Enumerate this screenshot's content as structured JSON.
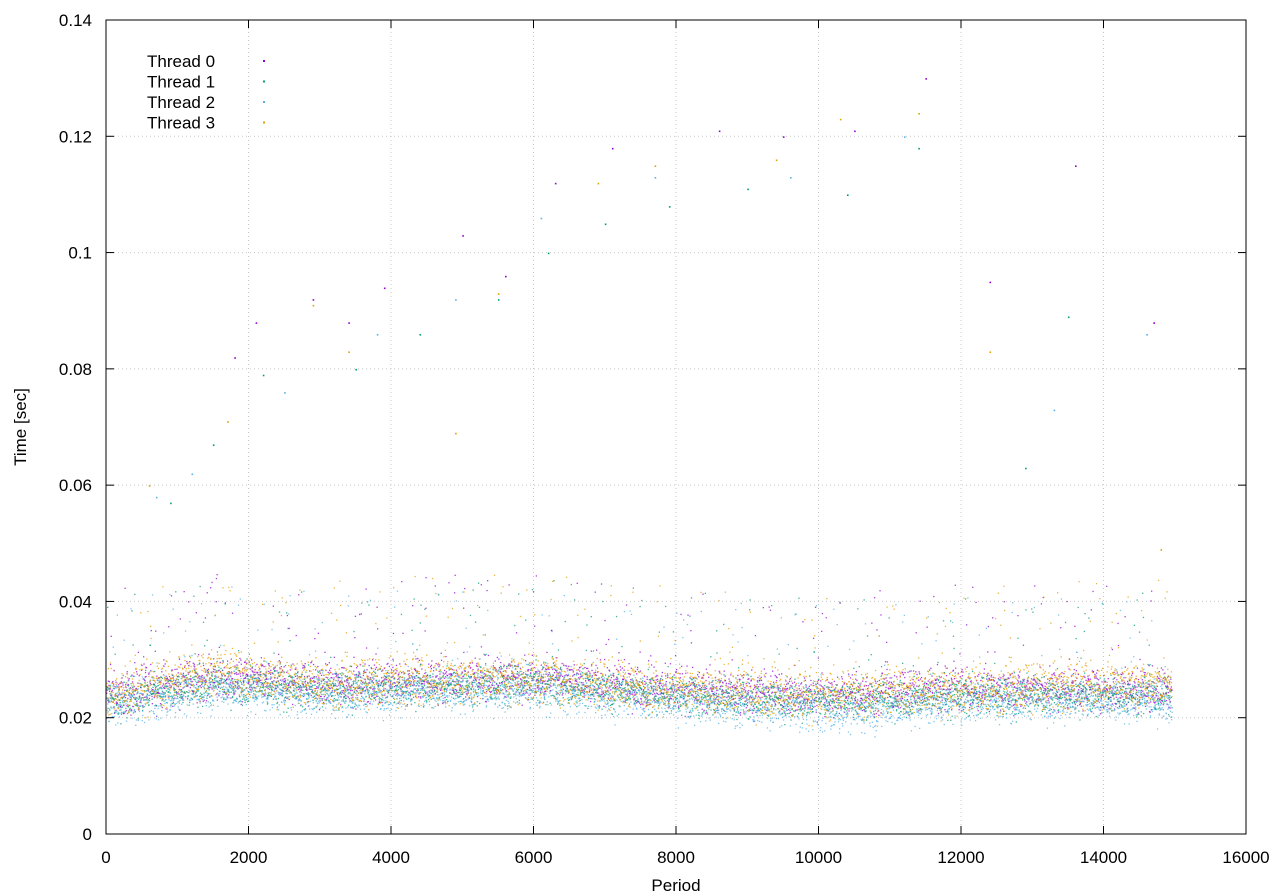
{
  "chart_data": {
    "type": "scatter",
    "title": "",
    "xlabel": "Period",
    "ylabel": "Time [sec]",
    "xlim": [
      0,
      16000
    ],
    "ylim": [
      0,
      0.14
    ],
    "x_ticks": [
      0,
      2000,
      4000,
      6000,
      8000,
      10000,
      12000,
      14000,
      16000
    ],
    "y_ticks": [
      0,
      0.02,
      0.04,
      0.06,
      0.08,
      0.1,
      0.12,
      0.14
    ],
    "x_tick_labels": [
      "0",
      "2000",
      "4000",
      "6000",
      "8000",
      "10000",
      "12000",
      "14000",
      "16000"
    ],
    "y_tick_labels": [
      "0",
      "0.02",
      "0.04",
      "0.06",
      "0.08",
      "0.1",
      "0.12",
      "0.14"
    ],
    "grid": true,
    "legend_position": "top-left",
    "series": [
      {
        "name": "Thread 0",
        "color": "#9400d3",
        "x_range": [
          0,
          14950
        ],
        "typical_range": [
          0.019,
          0.032
        ],
        "baseline_trend": [
          [
            0,
            0.024
          ],
          [
            1500,
            0.027
          ],
          [
            3000,
            0.026
          ],
          [
            6000,
            0.027
          ],
          [
            8000,
            0.025
          ],
          [
            10000,
            0.024
          ],
          [
            12000,
            0.025
          ],
          [
            14950,
            0.025
          ]
        ],
        "outliers": [
          [
            1800,
            0.082
          ],
          [
            2100,
            0.088
          ],
          [
            2900,
            0.092
          ],
          [
            3400,
            0.088
          ],
          [
            3900,
            0.094
          ],
          [
            5000,
            0.103
          ],
          [
            5600,
            0.096
          ],
          [
            6300,
            0.112
          ],
          [
            7100,
            0.118
          ],
          [
            8600,
            0.121
          ],
          [
            9500,
            0.12
          ],
          [
            10500,
            0.121
          ],
          [
            11500,
            0.13
          ],
          [
            12400,
            0.095
          ],
          [
            13600,
            0.115
          ],
          [
            14700,
            0.088
          ]
        ]
      },
      {
        "name": "Thread 1",
        "color": "#009e73",
        "x_range": [
          0,
          14950
        ],
        "typical_range": [
          0.018,
          0.03
        ],
        "baseline_trend": [
          [
            0,
            0.023
          ],
          [
            1500,
            0.026
          ],
          [
            3000,
            0.025
          ],
          [
            6000,
            0.026
          ],
          [
            8000,
            0.024
          ],
          [
            10000,
            0.023
          ],
          [
            12000,
            0.024
          ],
          [
            14950,
            0.024
          ]
        ],
        "outliers": [
          [
            900,
            0.057
          ],
          [
            1500,
            0.067
          ],
          [
            2200,
            0.079
          ],
          [
            3500,
            0.08
          ],
          [
            4400,
            0.086
          ],
          [
            5500,
            0.092
          ],
          [
            6200,
            0.1
          ],
          [
            7000,
            0.105
          ],
          [
            7900,
            0.108
          ],
          [
            9000,
            0.111
          ],
          [
            10400,
            0.11
          ],
          [
            11400,
            0.118
          ],
          [
            12900,
            0.063
          ],
          [
            13500,
            0.089
          ]
        ]
      },
      {
        "name": "Thread 2",
        "color": "#56b4e9",
        "x_range": [
          0,
          14950
        ],
        "typical_range": [
          0.016,
          0.029
        ],
        "baseline_trend": [
          [
            0,
            0.022
          ],
          [
            1500,
            0.025
          ],
          [
            3000,
            0.024
          ],
          [
            6000,
            0.025
          ],
          [
            8000,
            0.023
          ],
          [
            10500,
            0.021
          ],
          [
            12000,
            0.023
          ],
          [
            14950,
            0.023
          ]
        ],
        "outliers": [
          [
            700,
            0.058
          ],
          [
            1200,
            0.062
          ],
          [
            2500,
            0.076
          ],
          [
            3800,
            0.086
          ],
          [
            4900,
            0.092
          ],
          [
            6100,
            0.106
          ],
          [
            7700,
            0.113
          ],
          [
            9600,
            0.113
          ],
          [
            11200,
            0.12
          ],
          [
            13300,
            0.073
          ],
          [
            14600,
            0.086
          ]
        ]
      },
      {
        "name": "Thread 3",
        "color": "#e69f00",
        "x_range": [
          0,
          14950
        ],
        "typical_range": [
          0.018,
          0.033
        ],
        "baseline_trend": [
          [
            0,
            0.024
          ],
          [
            1500,
            0.028
          ],
          [
            3000,
            0.026
          ],
          [
            6000,
            0.027
          ],
          [
            8000,
            0.025
          ],
          [
            10000,
            0.024
          ],
          [
            12000,
            0.025
          ],
          [
            14950,
            0.026
          ]
        ],
        "outliers": [
          [
            600,
            0.06
          ],
          [
            1700,
            0.071
          ],
          [
            2900,
            0.091
          ],
          [
            3400,
            0.083
          ],
          [
            4900,
            0.069
          ],
          [
            5500,
            0.093
          ],
          [
            6900,
            0.112
          ],
          [
            7700,
            0.115
          ],
          [
            9400,
            0.116
          ],
          [
            10300,
            0.123
          ],
          [
            11400,
            0.124
          ],
          [
            12400,
            0.083
          ],
          [
            14800,
            0.049
          ]
        ]
      }
    ]
  }
}
